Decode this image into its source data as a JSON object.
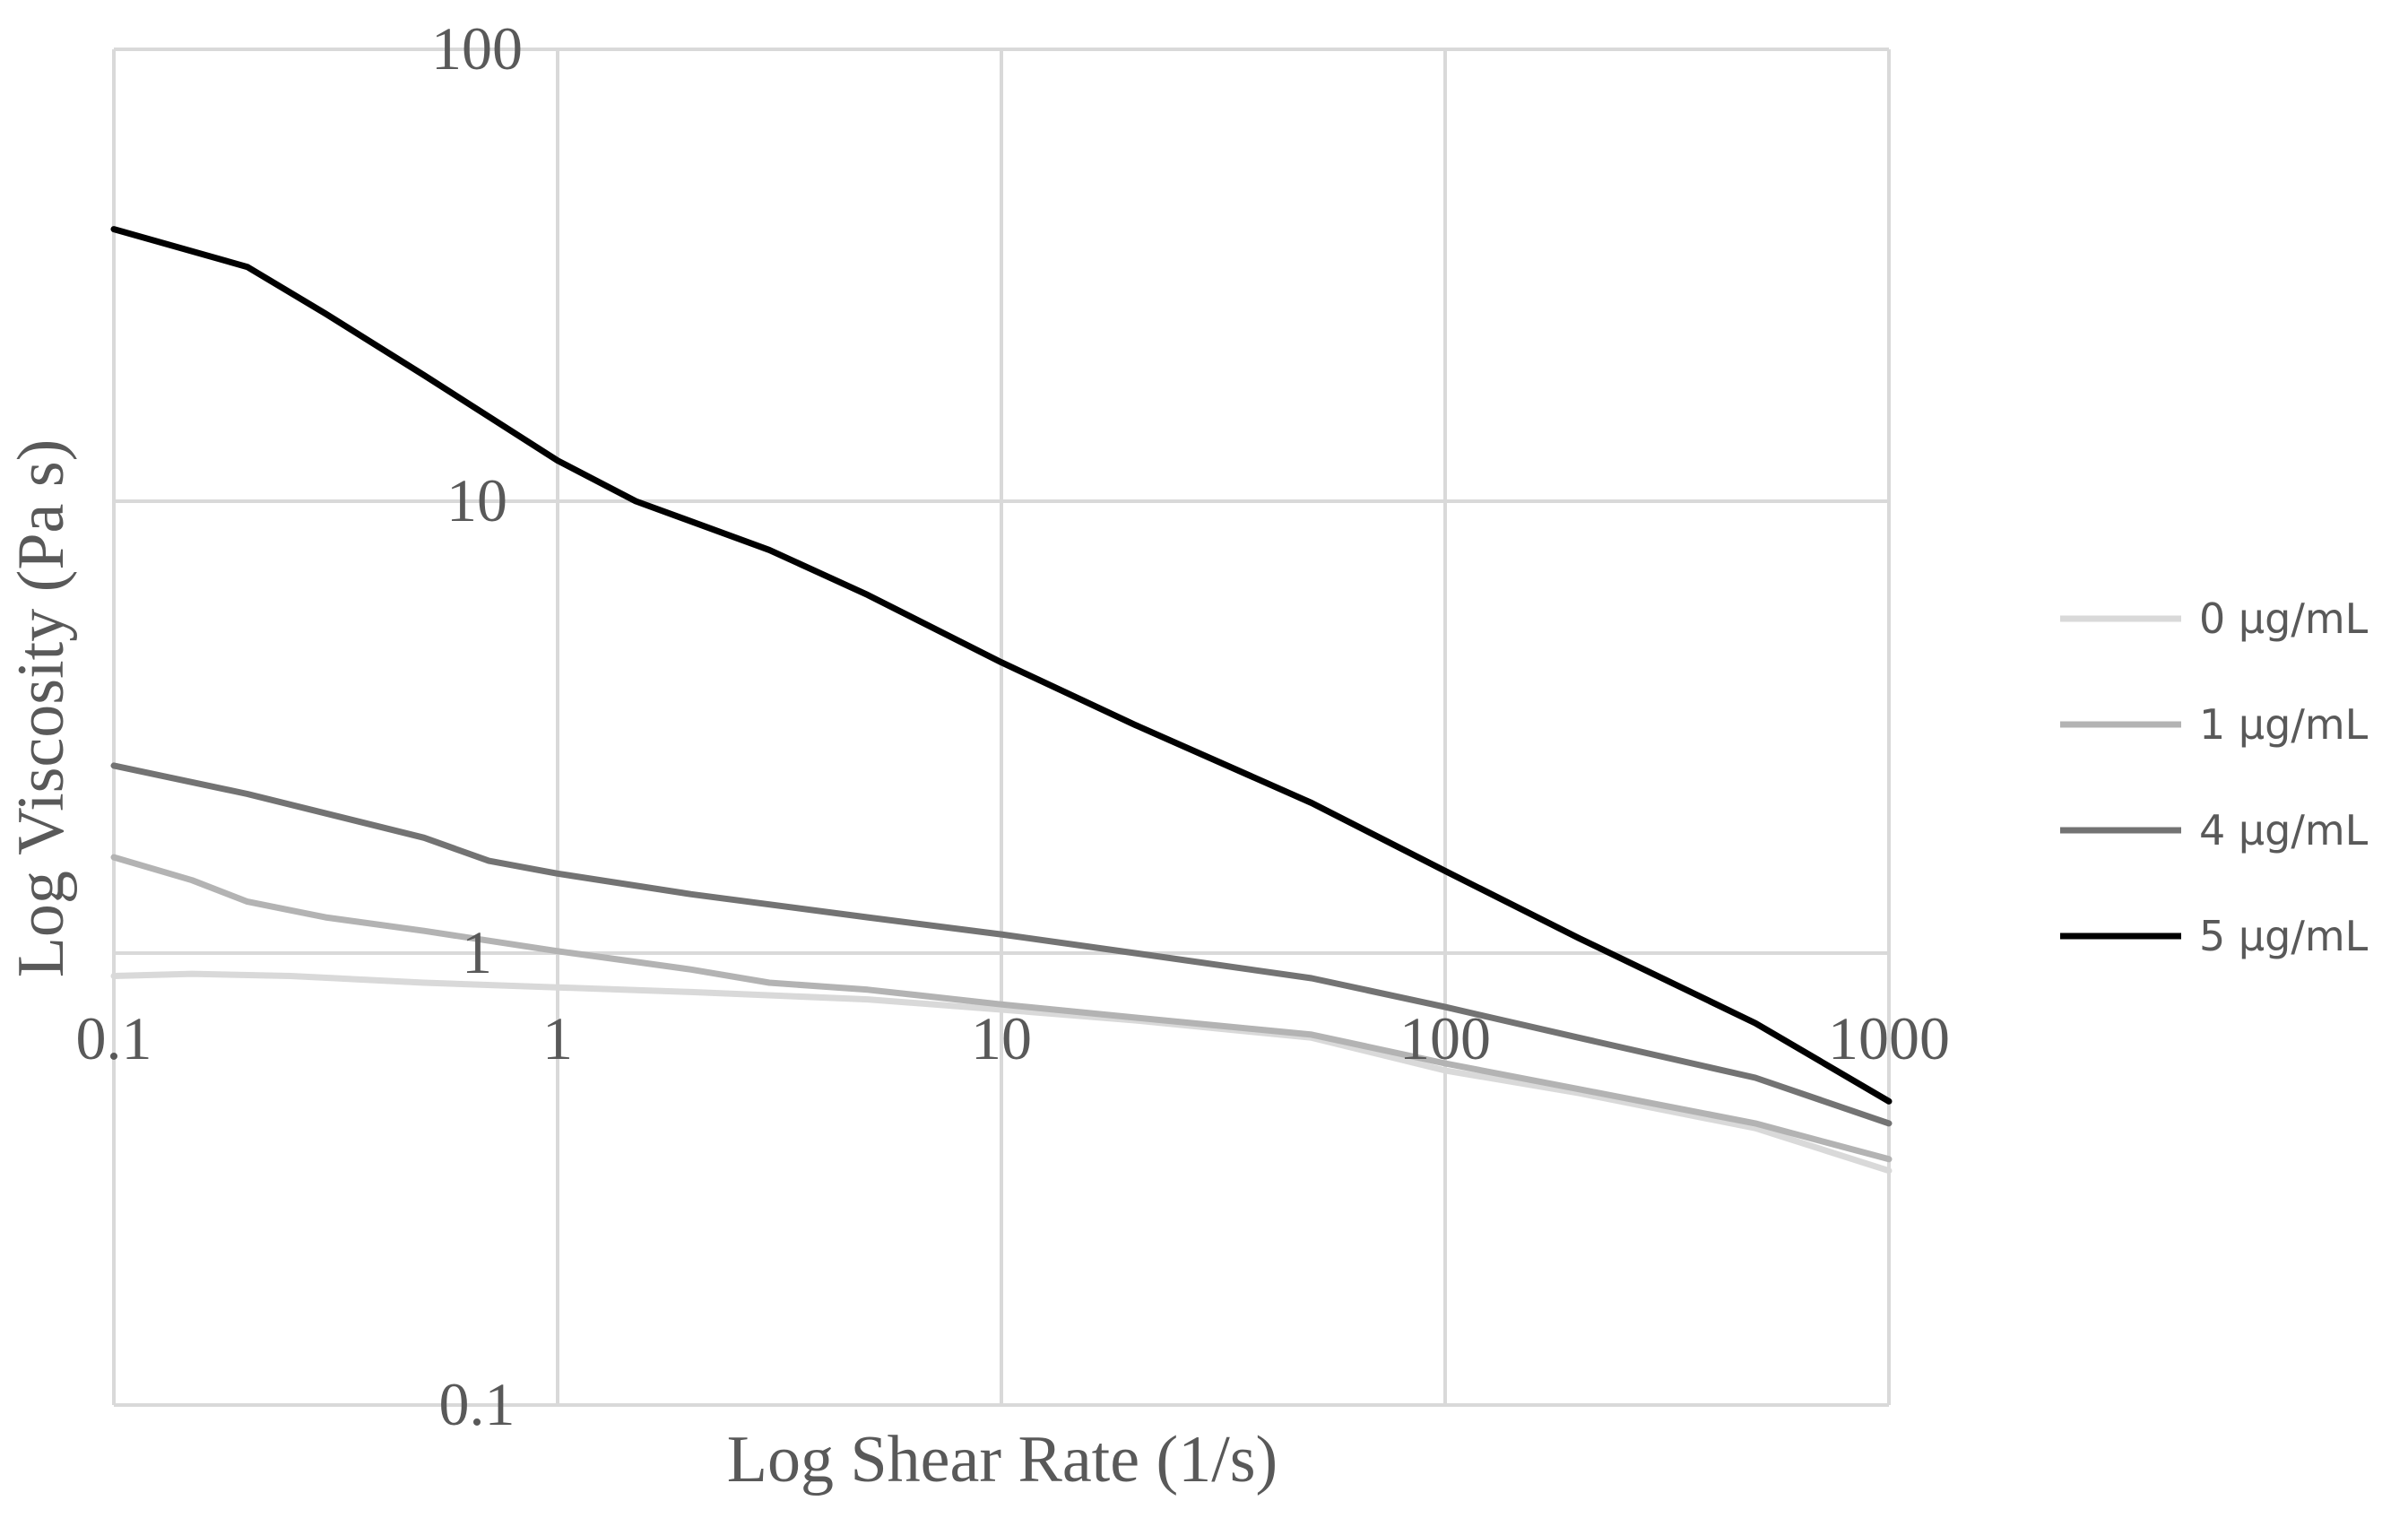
{
  "chart_data": {
    "type": "line",
    "title": "",
    "xlabel": "Log Shear Rate (1/s)",
    "ylabel": "Log Viscosity (Pa s)",
    "x_scale": "log",
    "y_scale": "log",
    "xlim": [
      0.1,
      1000
    ],
    "ylim": [
      0.1,
      100
    ],
    "x_ticks": [
      0.1,
      1,
      10,
      100,
      1000
    ],
    "x_tick_labels": [
      "0.1",
      "1",
      "10",
      "100",
      "1000"
    ],
    "y_ticks": [
      0.1,
      1,
      10,
      100
    ],
    "y_tick_labels": [
      "0.1",
      "1",
      "10",
      "100"
    ],
    "grid": true,
    "legend_position": "right",
    "series": [
      {
        "name": "0 µg/mL",
        "color": "#d9d9d9",
        "points": [
          [
            0.1,
            0.89
          ],
          [
            0.15,
            0.9
          ],
          [
            0.25,
            0.89
          ],
          [
            0.5,
            0.86
          ],
          [
            1,
            0.84
          ],
          [
            2,
            0.82
          ],
          [
            5,
            0.79
          ],
          [
            10,
            0.75
          ],
          [
            20,
            0.71
          ],
          [
            50,
            0.65
          ],
          [
            100,
            0.55
          ],
          [
            200,
            0.49
          ],
          [
            500,
            0.41
          ],
          [
            1000,
            0.33
          ]
        ]
      },
      {
        "name": "1 µg/mL",
        "color": "#b3b3b3",
        "points": [
          [
            0.1,
            1.63
          ],
          [
            0.15,
            1.45
          ],
          [
            0.2,
            1.3
          ],
          [
            0.3,
            1.2
          ],
          [
            0.5,
            1.12
          ],
          [
            1,
            1.01
          ],
          [
            2,
            0.92
          ],
          [
            3,
            0.86
          ],
          [
            5,
            0.83
          ],
          [
            10,
            0.77
          ],
          [
            20,
            0.72
          ],
          [
            50,
            0.66
          ],
          [
            100,
            0.57
          ],
          [
            200,
            0.5
          ],
          [
            500,
            0.42
          ],
          [
            1000,
            0.35
          ]
        ]
      },
      {
        "name": "4 µg/mL",
        "color": "#737373",
        "points": [
          [
            0.1,
            2.6
          ],
          [
            0.2,
            2.25
          ],
          [
            0.5,
            1.8
          ],
          [
            0.7,
            1.6
          ],
          [
            1,
            1.5
          ],
          [
            2,
            1.35
          ],
          [
            5,
            1.2
          ],
          [
            10,
            1.1
          ],
          [
            20,
            1.0
          ],
          [
            50,
            0.88
          ],
          [
            100,
            0.76
          ],
          [
            200,
            0.65
          ],
          [
            500,
            0.53
          ],
          [
            1000,
            0.42
          ]
        ]
      },
      {
        "name": "5 µg/mL",
        "color": "#000000",
        "points": [
          [
            0.1,
            40
          ],
          [
            0.2,
            33
          ],
          [
            0.3,
            26
          ],
          [
            0.5,
            19
          ],
          [
            1,
            12.3
          ],
          [
            1.5,
            10
          ],
          [
            3,
            7.8
          ],
          [
            5,
            6.2
          ],
          [
            10,
            4.4
          ],
          [
            20,
            3.2
          ],
          [
            50,
            2.15
          ],
          [
            100,
            1.52
          ],
          [
            200,
            1.08
          ],
          [
            500,
            0.7
          ],
          [
            1000,
            0.47
          ]
        ]
      }
    ]
  }
}
